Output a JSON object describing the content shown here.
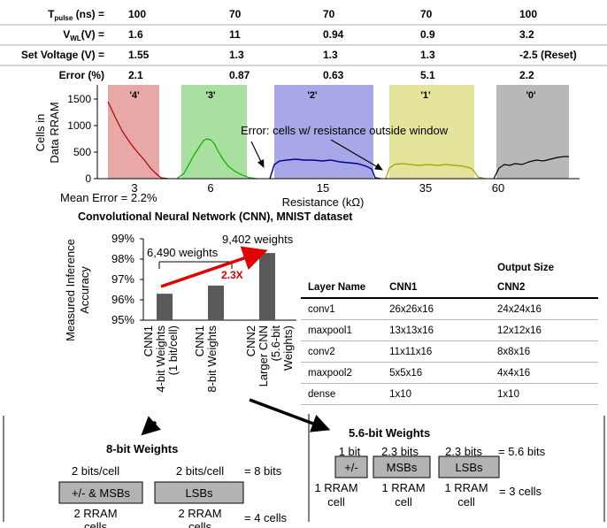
{
  "param_table": {
    "rows": [
      {
        "label_main": "T",
        "label_sub": "pulse",
        "label_rest": " (ns) =",
        "values": [
          "100",
          "70",
          "70",
          "70",
          "100"
        ]
      },
      {
        "label_main": "V",
        "label_sub": "WL",
        "label_rest": "(V) =",
        "values": [
          "1.6",
          "11",
          "0.94",
          "0.9",
          "3.2"
        ]
      },
      {
        "label_main": "Set Voltage (V) =",
        "label_sub": "",
        "label_rest": "",
        "values": [
          "1.55",
          "1.3",
          "1.3",
          "1.3",
          "-2.5 (Reset)"
        ]
      },
      {
        "label_main": "Error (%)",
        "label_sub": "",
        "label_rest": "",
        "values": [
          "2.1",
          "0.87",
          "0.63",
          "5.1",
          "2.2"
        ]
      }
    ]
  },
  "distribution_chart": {
    "ylabel_line1": "Cells in",
    "ylabel_line2": "Data RRAM",
    "yticks": [
      "1500",
      "1000",
      "500",
      "0"
    ],
    "xticks": [
      "3",
      "6",
      "15",
      "35",
      "60"
    ],
    "xlabel": "Resistance (kΩ)",
    "window_labels": [
      "'4'",
      "'3'",
      "'2'",
      "'1'",
      "'0'"
    ],
    "window_colors": [
      "#e8a8a8",
      "#a8e0a0",
      "#a8a8e8",
      "#e4e49c",
      "#b8b8b8"
    ],
    "series_colors": [
      "#b00000",
      "#00b000",
      "#000090",
      "#a0a000",
      "#000000"
    ],
    "annotation": "Error: cells w/ resistance outside window",
    "mean_error": "Mean Error = 2.2%"
  },
  "cnn_title": "Convolutional Neural Network (CNN), MNIST dataset",
  "bar_chart": {
    "chart_data": {
      "type": "bar",
      "ylabel_line1": "Measured Inference",
      "ylabel_line2": "Accuracy",
      "yticks": [
        "99%",
        "98%",
        "97%",
        "96%",
        "95%"
      ],
      "ylim": [
        95,
        99
      ],
      "categories": [
        [
          "CNN1",
          "4-bit Weights",
          "(1 bit/cell)"
        ],
        [
          "CNN1",
          "8-bit Weights"
        ],
        [
          "CNN2",
          "Larger CNN",
          "(5.6-bit",
          "Weights)"
        ]
      ],
      "values": [
        96.3,
        96.7,
        98.3
      ],
      "bar_color": "#595959"
    },
    "label_6490": "6,490 weights",
    "label_9402": "9,402 weights",
    "ratio": "2.3X"
  },
  "output_table": {
    "super_header": "Output Size",
    "headers": [
      "Layer Name",
      "CNN1",
      "CNN2"
    ],
    "rows": [
      [
        "conv1",
        "26x26x16",
        "24x24x16"
      ],
      [
        "maxpool1",
        "13x13x16",
        "12x12x16"
      ],
      [
        "conv2",
        "11x11x16",
        "8x8x16"
      ],
      [
        "maxpool2",
        "5x5x16",
        "4x4x16"
      ],
      [
        "dense",
        "1x10",
        "1x10"
      ]
    ]
  },
  "weights8": {
    "title": "8-bit Weights",
    "bits_left": "2 bits/cell",
    "bits_right": "2 bits/cell",
    "bits_total": "= 8 bits",
    "box_left": "+/- & MSBs",
    "box_right": "LSBs",
    "rram_left_1": "2 RRAM",
    "rram_left_2": "cells",
    "rram_right_1": "2 RRAM",
    "rram_right_2": "cells",
    "cells_total": "= 4 cells"
  },
  "weights56": {
    "title": "5.6-bit Weights",
    "bits": [
      "1 bit",
      "2.3 bits",
      "2.3 bits"
    ],
    "bits_total": "= 5.6 bits",
    "boxes": [
      "+/-",
      "MSBs",
      "LSBs"
    ],
    "rram_1": [
      "1 RRAM",
      "1 RRAM",
      "1 RRAM"
    ],
    "rram_2": [
      "cell",
      "cell",
      "cell"
    ],
    "cells_total": "= 3 cells"
  }
}
